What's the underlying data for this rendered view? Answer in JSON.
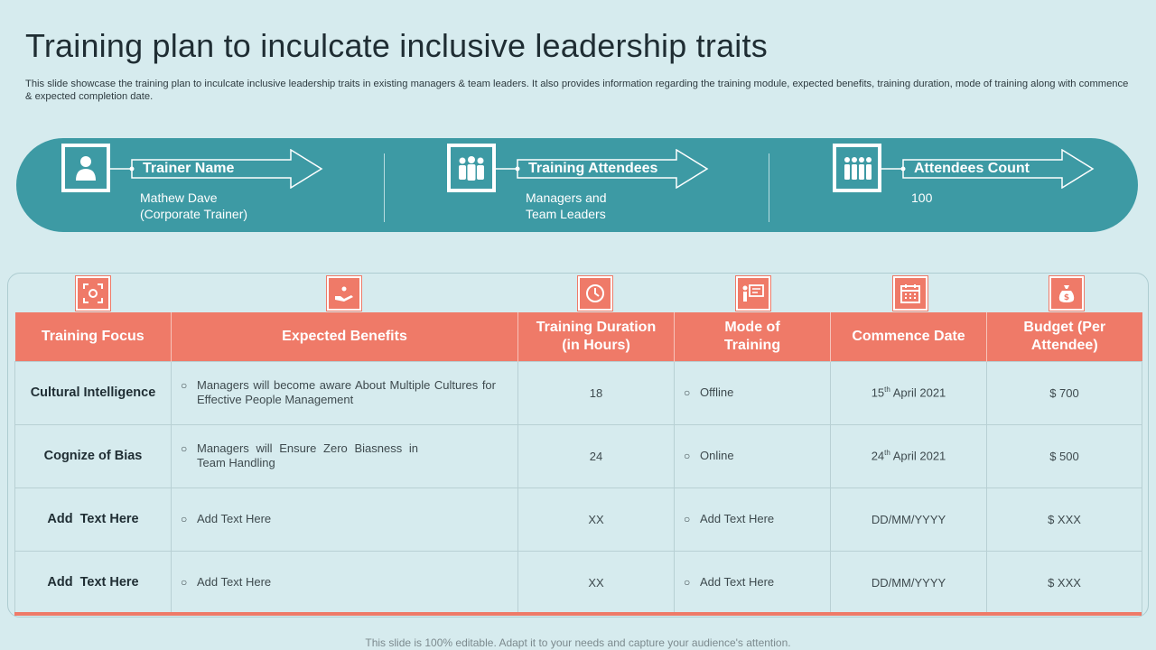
{
  "title": "Training plan to inculcate inclusive leadership traits",
  "subtitle": "This slide showcase the training plan to inculcate inclusive leadership traits in existing managers & team leaders. It also provides information regarding the training module, expected benefits, training duration, mode of training along with commence & expected completion date.",
  "banner": {
    "items": [
      {
        "label": "Trainer Name",
        "value": "Mathew Dave\n(Corporate Trainer)",
        "icon": "person-icon"
      },
      {
        "label": "Training Attendees",
        "value": "Managers and\nTeam Leaders",
        "icon": "group-icon"
      },
      {
        "label": "Attendees Count",
        "value": "100",
        "icon": "team-count-icon"
      }
    ]
  },
  "table": {
    "headers": [
      "Training Focus",
      "Expected Benefits",
      "Training Duration (in Hours)",
      "Mode of Training",
      "Commence Date",
      "Budget (Per Attendee)"
    ],
    "header_icons": [
      "focus-icon",
      "benefit-hand-icon",
      "clock-icon",
      "presentation-icon",
      "calendar-icon",
      "money-bag-icon"
    ],
    "rows": [
      {
        "focus": "Cultural Intelligence",
        "benefit": "Managers will become aware About Multiple Cultures for Effective People Management",
        "duration": "18",
        "mode": "Offline",
        "date_day": "15",
        "date_suffix": "th",
        "date_rest": " April 2021",
        "budget": "$ 700"
      },
      {
        "focus": "Cognize of Bias",
        "benefit": "Managers will Ensure Zero Biasness in Team Handling",
        "duration": "24",
        "mode": "Online",
        "date_day": "24",
        "date_suffix": "th",
        "date_rest": " April 2021",
        "budget": "$ 500"
      },
      {
        "focus": "Add  Text Here",
        "benefit": "Add Text Here",
        "duration": "XX",
        "mode": "Add Text Here",
        "date_day": "DD/MM/YYYY",
        "date_suffix": "",
        "date_rest": "",
        "budget": "$ XXX"
      },
      {
        "focus": "Add  Text Here",
        "benefit": "Add Text Here",
        "duration": "XX",
        "mode": "Add Text Here",
        "date_day": "DD/MM/YYYY",
        "date_suffix": "",
        "date_rest": "",
        "budget": "$ XXX"
      }
    ],
    "bullet_glyph": "○"
  },
  "footer": "This slide is 100% editable. Adapt it to your needs and capture your audience's attention.",
  "colors": {
    "teal": "#3d9aa4",
    "coral": "#ef7a68",
    "background": "#d6ebee"
  }
}
